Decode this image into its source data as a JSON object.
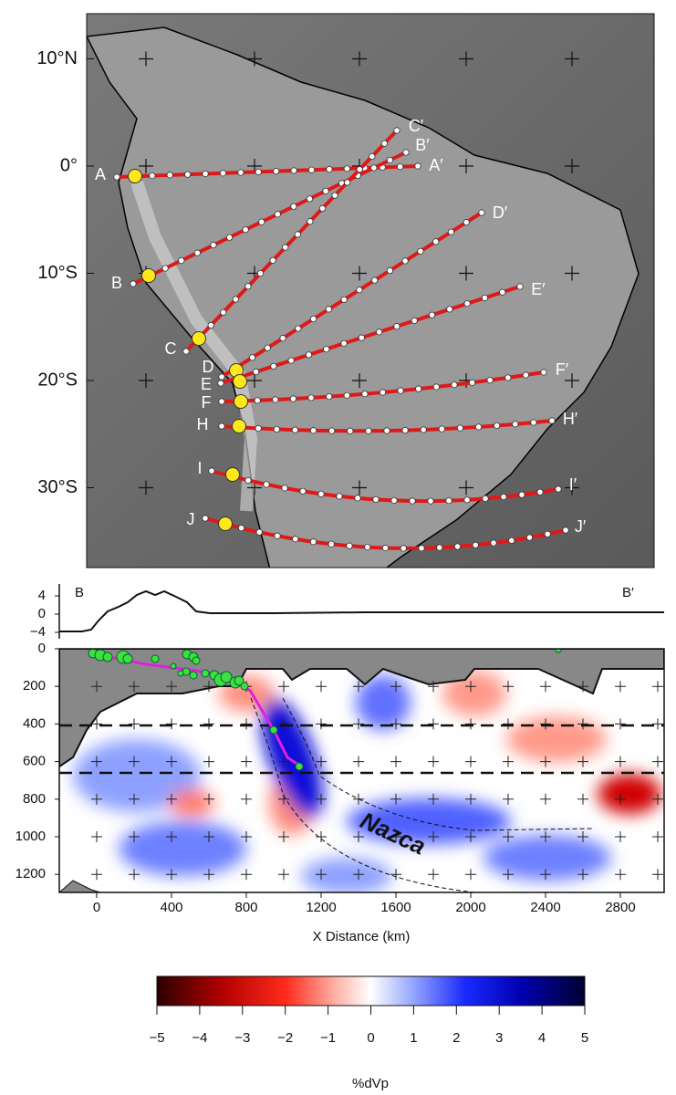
{
  "map": {
    "lat_labels": [
      {
        "value": 10,
        "label": "10°N"
      },
      {
        "value": 0,
        "label": "0°"
      },
      {
        "value": -10,
        "label": "10°S"
      },
      {
        "value": -20,
        "label": "20°S"
      },
      {
        "value": -30,
        "label": "30°S"
      }
    ],
    "profiles": [
      {
        "start": "A",
        "end": "A′"
      },
      {
        "start": "B",
        "end": "B′"
      },
      {
        "start": "C",
        "end": "C′"
      },
      {
        "start": "D",
        "end": "D′"
      },
      {
        "start": "E",
        "end": "E′"
      },
      {
        "start": "F",
        "end": "F′"
      },
      {
        "start": "H",
        "end": "H′"
      },
      {
        "start": "I",
        "end": "I′"
      },
      {
        "start": "J",
        "end": "J′"
      }
    ]
  },
  "section": {
    "start_label": "B",
    "end_label": "B′",
    "topo_ticks": [
      4,
      0,
      {
        "value": -4,
        "label": "−4"
      }
    ],
    "depth_ticks": [
      0,
      200,
      400,
      600,
      800,
      1000,
      1200
    ],
    "distance_ticks": [
      0,
      400,
      800,
      1200,
      1600,
      2000,
      2400,
      2800
    ],
    "x_label": "X Distance (km)",
    "slab_label": "Nazca"
  },
  "colorbar": {
    "ticks": [
      {
        "value": -5,
        "label": "−5"
      },
      {
        "value": -4,
        "label": "−4"
      },
      {
        "value": -3,
        "label": "−3"
      },
      {
        "value": -2,
        "label": "−2"
      },
      {
        "value": -1,
        "label": "−1"
      },
      0,
      1,
      2,
      3,
      4,
      5
    ],
    "label": "%dVp"
  }
}
